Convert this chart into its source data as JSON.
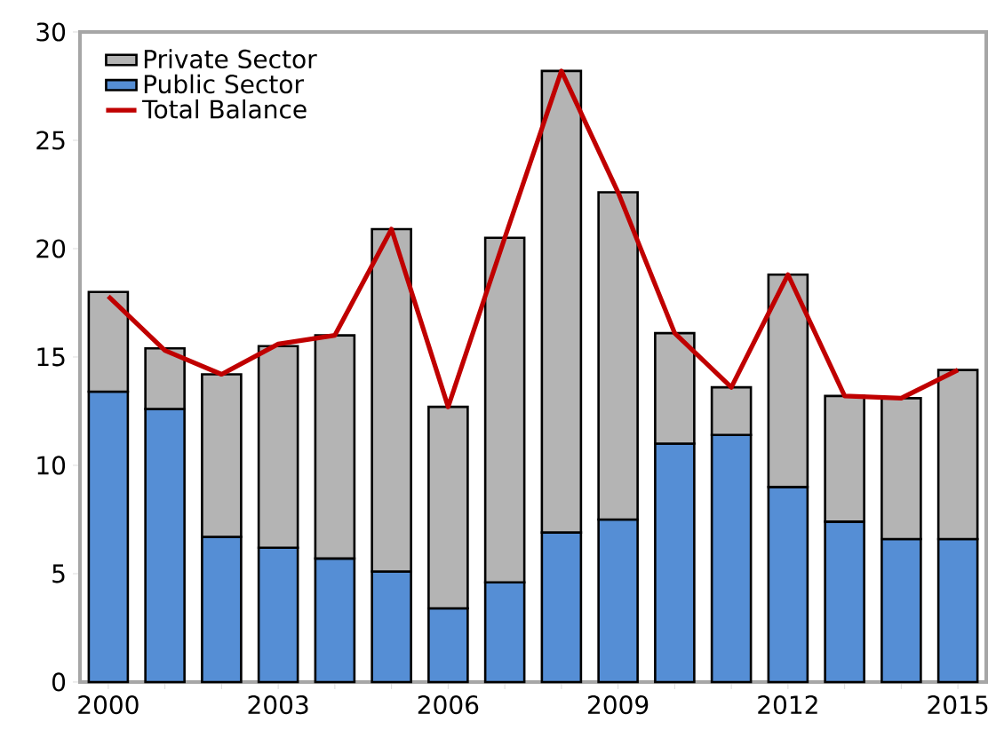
{
  "chart_data": {
    "type": "bar",
    "stacked": true,
    "categories": [
      "2000",
      null,
      null,
      "2003",
      null,
      null,
      "2006",
      null,
      null,
      "2009",
      null,
      null,
      "2012",
      null,
      null,
      "2015"
    ],
    "series": [
      {
        "name": "Public Sector",
        "color": "#558ed5",
        "values": [
          13.4,
          12.6,
          6.7,
          6.2,
          5.7,
          5.1,
          3.4,
          4.6,
          6.9,
          7.5,
          11.0,
          11.4,
          9.0,
          7.4,
          6.6,
          6.6
        ]
      },
      {
        "name": "Private Sector",
        "color": "#b4b4b4",
        "values": [
          4.6,
          2.8,
          7.5,
          9.3,
          10.3,
          15.8,
          9.3,
          15.9,
          21.3,
          15.1,
          5.1,
          2.2,
          9.8,
          5.8,
          6.5,
          7.8
        ]
      },
      {
        "name": "Total Balance",
        "type": "line",
        "color": "#c00000",
        "values": [
          17.8,
          15.3,
          14.2,
          15.6,
          16.0,
          20.9,
          12.7,
          20.5,
          28.2,
          22.6,
          16.1,
          13.6,
          18.8,
          13.2,
          13.1,
          14.4
        ]
      }
    ],
    "ylim": [
      0,
      30
    ],
    "yticks": [
      0,
      5,
      10,
      15,
      20,
      25,
      30
    ],
    "grid": false,
    "legend": "top left"
  }
}
